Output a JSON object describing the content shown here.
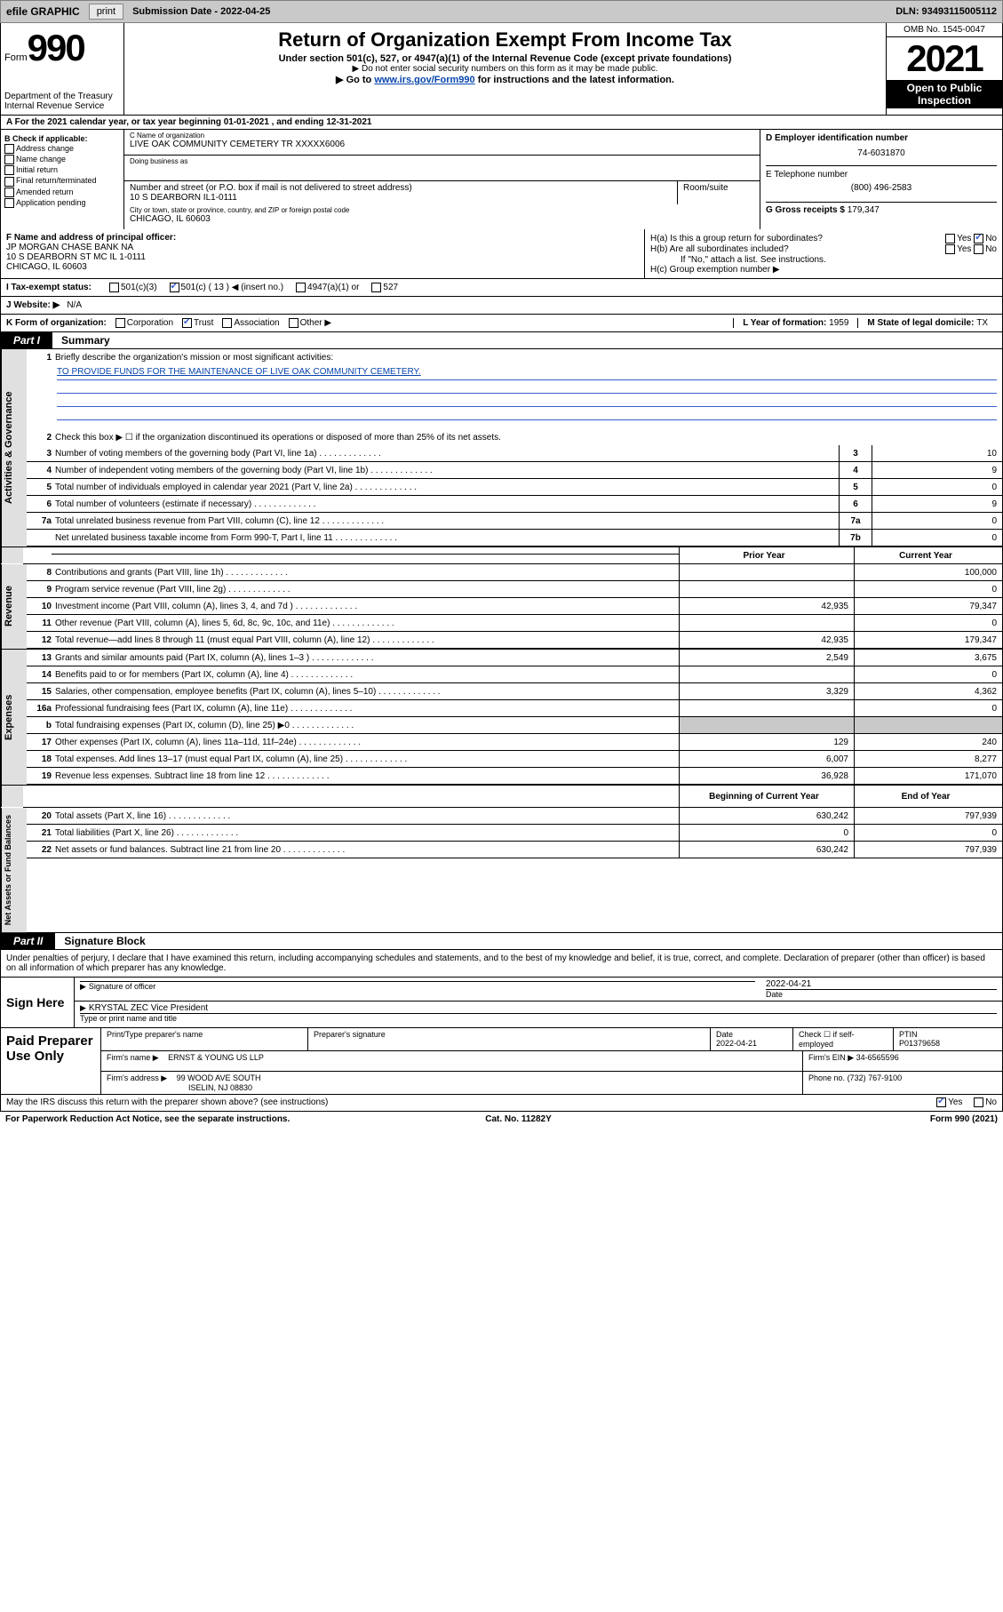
{
  "topbar": {
    "efile": "efile GRAPHIC",
    "print": "print",
    "sub_label": "Submission Date - 2022-04-25",
    "dln": "DLN: 93493115005112"
  },
  "header": {
    "form_word": "Form",
    "form_num": "990",
    "dept": "Department of the Treasury",
    "irs": "Internal Revenue Service",
    "title": "Return of Organization Exempt From Income Tax",
    "sub1": "Under section 501(c), 527, or 4947(a)(1) of the Internal Revenue Code (except private foundations)",
    "sub2": "▶ Do not enter social security numbers on this form as it may be made public.",
    "sub3_pre": "▶ Go to ",
    "sub3_link": "www.irs.gov/Form990",
    "sub3_post": " for instructions and the latest information.",
    "omb": "OMB No. 1545-0047",
    "year": "2021",
    "open1": "Open to Public",
    "open2": "Inspection"
  },
  "row_a": "A For the 2021 calendar year, or tax year beginning 01-01-2021  , and ending 12-31-2021",
  "col_b": {
    "hdr": "B Check if applicable:",
    "items": [
      "Address change",
      "Name change",
      "Initial return",
      "Final return/terminated",
      "Amended return",
      "Application pending"
    ]
  },
  "col_c": {
    "name_lbl": "C Name of organization",
    "name_val": "LIVE OAK COMMUNITY CEMETERY TR XXXXX6006",
    "dba_lbl": "Doing business as",
    "dba_val": "",
    "addr_lbl": "Number and street (or P.O. box if mail is not delivered to street address)",
    "room_lbl": "Room/suite",
    "addr_val": "10 S DEARBORN IL1-0111",
    "city_lbl": "City or town, state or province, country, and ZIP or foreign postal code",
    "city_val": "CHICAGO, IL  60603"
  },
  "col_de": {
    "d_lbl": "D Employer identification number",
    "d_val": "74-6031870",
    "e_lbl": "E Telephone number",
    "e_val": "(800) 496-2583",
    "g_lbl": "G Gross receipts $ ",
    "g_val": "179,347"
  },
  "col_f": {
    "lbl": "F Name and address of principal officer:",
    "l1": "JP MORGAN CHASE BANK NA",
    "l2": "10 S DEARBORN ST MC IL 1-0111",
    "l3": "CHICAGO, IL  60603"
  },
  "col_h": {
    "ha": "H(a)  Is this a group return for subordinates?",
    "hb": "H(b)  Are all subordinates included?",
    "hb_note": "If \"No,\" attach a list. See instructions.",
    "hc": "H(c)  Group exemption number ▶",
    "yes": "Yes",
    "no": "No"
  },
  "row_i": {
    "lbl": "I    Tax-exempt status:",
    "o1": "501(c)(3)",
    "o2": "501(c) ( 13 ) ◀ (insert no.)",
    "o3": "4947(a)(1) or",
    "o4": "527"
  },
  "row_j": {
    "lbl": "J   Website: ▶",
    "val": "N/A"
  },
  "row_k": {
    "lbl": "K Form of organization:",
    "o1": "Corporation",
    "o2": "Trust",
    "o3": "Association",
    "o4": "Other ▶",
    "l_lbl": "L Year of formation: ",
    "l_val": "1959",
    "m_lbl": "M State of legal domicile: ",
    "m_val": "TX"
  },
  "part1": {
    "tab": "Part I",
    "title": "Summary"
  },
  "activities": {
    "side": "Activities & Governance",
    "l1": "Briefly describe the organization's mission or most significant activities:",
    "l1_val": "TO PROVIDE FUNDS FOR THE MAINTENANCE OF LIVE OAK COMMUNITY CEMETERY.",
    "l2": "Check this box ▶ ☐  if the organization discontinued its operations or disposed of more than 25% of its net assets.",
    "rows": [
      {
        "n": "3",
        "d": "Number of voting members of the governing body (Part VI, line 1a)",
        "box": "3",
        "v": "10"
      },
      {
        "n": "4",
        "d": "Number of independent voting members of the governing body (Part VI, line 1b)",
        "box": "4",
        "v": "9"
      },
      {
        "n": "5",
        "d": "Total number of individuals employed in calendar year 2021 (Part V, line 2a)",
        "box": "5",
        "v": "0"
      },
      {
        "n": "6",
        "d": "Total number of volunteers (estimate if necessary)",
        "box": "6",
        "v": "9"
      },
      {
        "n": "7a",
        "d": "Total unrelated business revenue from Part VIII, column (C), line 12",
        "box": "7a",
        "v": "0"
      },
      {
        "n": "",
        "d": "Net unrelated business taxable income from Form 990-T, Part I, line 11",
        "box": "7b",
        "v": "0"
      }
    ]
  },
  "two_col_hdr": {
    "prior": "Prior Year",
    "curr": "Current Year"
  },
  "revenue": {
    "side": "Revenue",
    "rows": [
      {
        "n": "8",
        "d": "Contributions and grants (Part VIII, line 1h)",
        "p": "",
        "c": "100,000"
      },
      {
        "n": "9",
        "d": "Program service revenue (Part VIII, line 2g)",
        "p": "",
        "c": "0"
      },
      {
        "n": "10",
        "d": "Investment income (Part VIII, column (A), lines 3, 4, and 7d )",
        "p": "42,935",
        "c": "79,347"
      },
      {
        "n": "11",
        "d": "Other revenue (Part VIII, column (A), lines 5, 6d, 8c, 9c, 10c, and 11e)",
        "p": "",
        "c": "0"
      },
      {
        "n": "12",
        "d": "Total revenue—add lines 8 through 11 (must equal Part VIII, column (A), line 12)",
        "p": "42,935",
        "c": "179,347"
      }
    ]
  },
  "expenses": {
    "side": "Expenses",
    "rows": [
      {
        "n": "13",
        "d": "Grants and similar amounts paid (Part IX, column (A), lines 1–3 )",
        "p": "2,549",
        "c": "3,675"
      },
      {
        "n": "14",
        "d": "Benefits paid to or for members (Part IX, column (A), line 4)",
        "p": "",
        "c": "0"
      },
      {
        "n": "15",
        "d": "Salaries, other compensation, employee benefits (Part IX, column (A), lines 5–10)",
        "p": "3,329",
        "c": "4,362"
      },
      {
        "n": "16a",
        "d": "Professional fundraising fees (Part IX, column (A), line 11e)",
        "p": "",
        "c": "0"
      },
      {
        "n": "b",
        "d": "Total fundraising expenses (Part IX, column (D), line 25) ▶0",
        "p": "SHADE",
        "c": "SHADE"
      },
      {
        "n": "17",
        "d": "Other expenses (Part IX, column (A), lines 11a–11d, 11f–24e)",
        "p": "129",
        "c": "240"
      },
      {
        "n": "18",
        "d": "Total expenses. Add lines 13–17 (must equal Part IX, column (A), line 25)",
        "p": "6,007",
        "c": "8,277"
      },
      {
        "n": "19",
        "d": "Revenue less expenses. Subtract line 18 from line 12",
        "p": "36,928",
        "c": "171,070"
      }
    ]
  },
  "netassets_hdr": {
    "beg": "Beginning of Current Year",
    "end": "End of Year"
  },
  "netassets": {
    "side": "Net Assets or Fund Balances",
    "rows": [
      {
        "n": "20",
        "d": "Total assets (Part X, line 16)",
        "p": "630,242",
        "c": "797,939"
      },
      {
        "n": "21",
        "d": "Total liabilities (Part X, line 26)",
        "p": "0",
        "c": "0"
      },
      {
        "n": "22",
        "d": "Net assets or fund balances. Subtract line 21 from line 20",
        "p": "630,242",
        "c": "797,939"
      }
    ]
  },
  "part2": {
    "tab": "Part II",
    "title": "Signature Block"
  },
  "sig": {
    "intro": "Under penalties of perjury, I declare that I have examined this return, including accompanying schedules and statements, and to the best of my knowledge and belief, it is true, correct, and complete. Declaration of preparer (other than officer) is based on all information of which preparer has any knowledge.",
    "here": "Sign Here",
    "sig_of": "Signature of officer",
    "date_lbl": "Date",
    "date_val": "2022-04-21",
    "name": "KRYSTAL ZEC  Vice President",
    "name_lbl": "Type or print name and title"
  },
  "prep": {
    "left": "Paid Preparer Use Only",
    "r1": {
      "c1": "Print/Type preparer's name",
      "c2": "Preparer's signature",
      "c3": "Date",
      "c3v": "2022-04-21",
      "c4": "Check ☐ if self-employed",
      "c5": "PTIN",
      "c5v": "P01379658"
    },
    "r2": {
      "lbl": "Firm's name    ▶",
      "val": "ERNST & YOUNG US LLP",
      "ein_lbl": "Firm's EIN ▶",
      "ein": "34-6565596"
    },
    "r3": {
      "lbl": "Firm's address ▶",
      "val": "99 WOOD AVE SOUTH",
      "ph_lbl": "Phone no.",
      "ph": "(732) 767-9100"
    },
    "r3b": "ISELIN, NJ  08830"
  },
  "discuss": {
    "txt": "May the IRS discuss this return with the preparer shown above? (see instructions)",
    "yes": "Yes",
    "no": "No"
  },
  "footer": {
    "left": "For Paperwork Reduction Act Notice, see the separate instructions.",
    "mid": "Cat. No. 11282Y",
    "right": "Form 990 (2021)"
  },
  "colors": {
    "topbar_bg": "#c9c9c9",
    "link": "#0645ad",
    "check_blue": "#3a5fcd",
    "side_bg": "#e0e0e0",
    "shade": "#c9c9c9"
  }
}
